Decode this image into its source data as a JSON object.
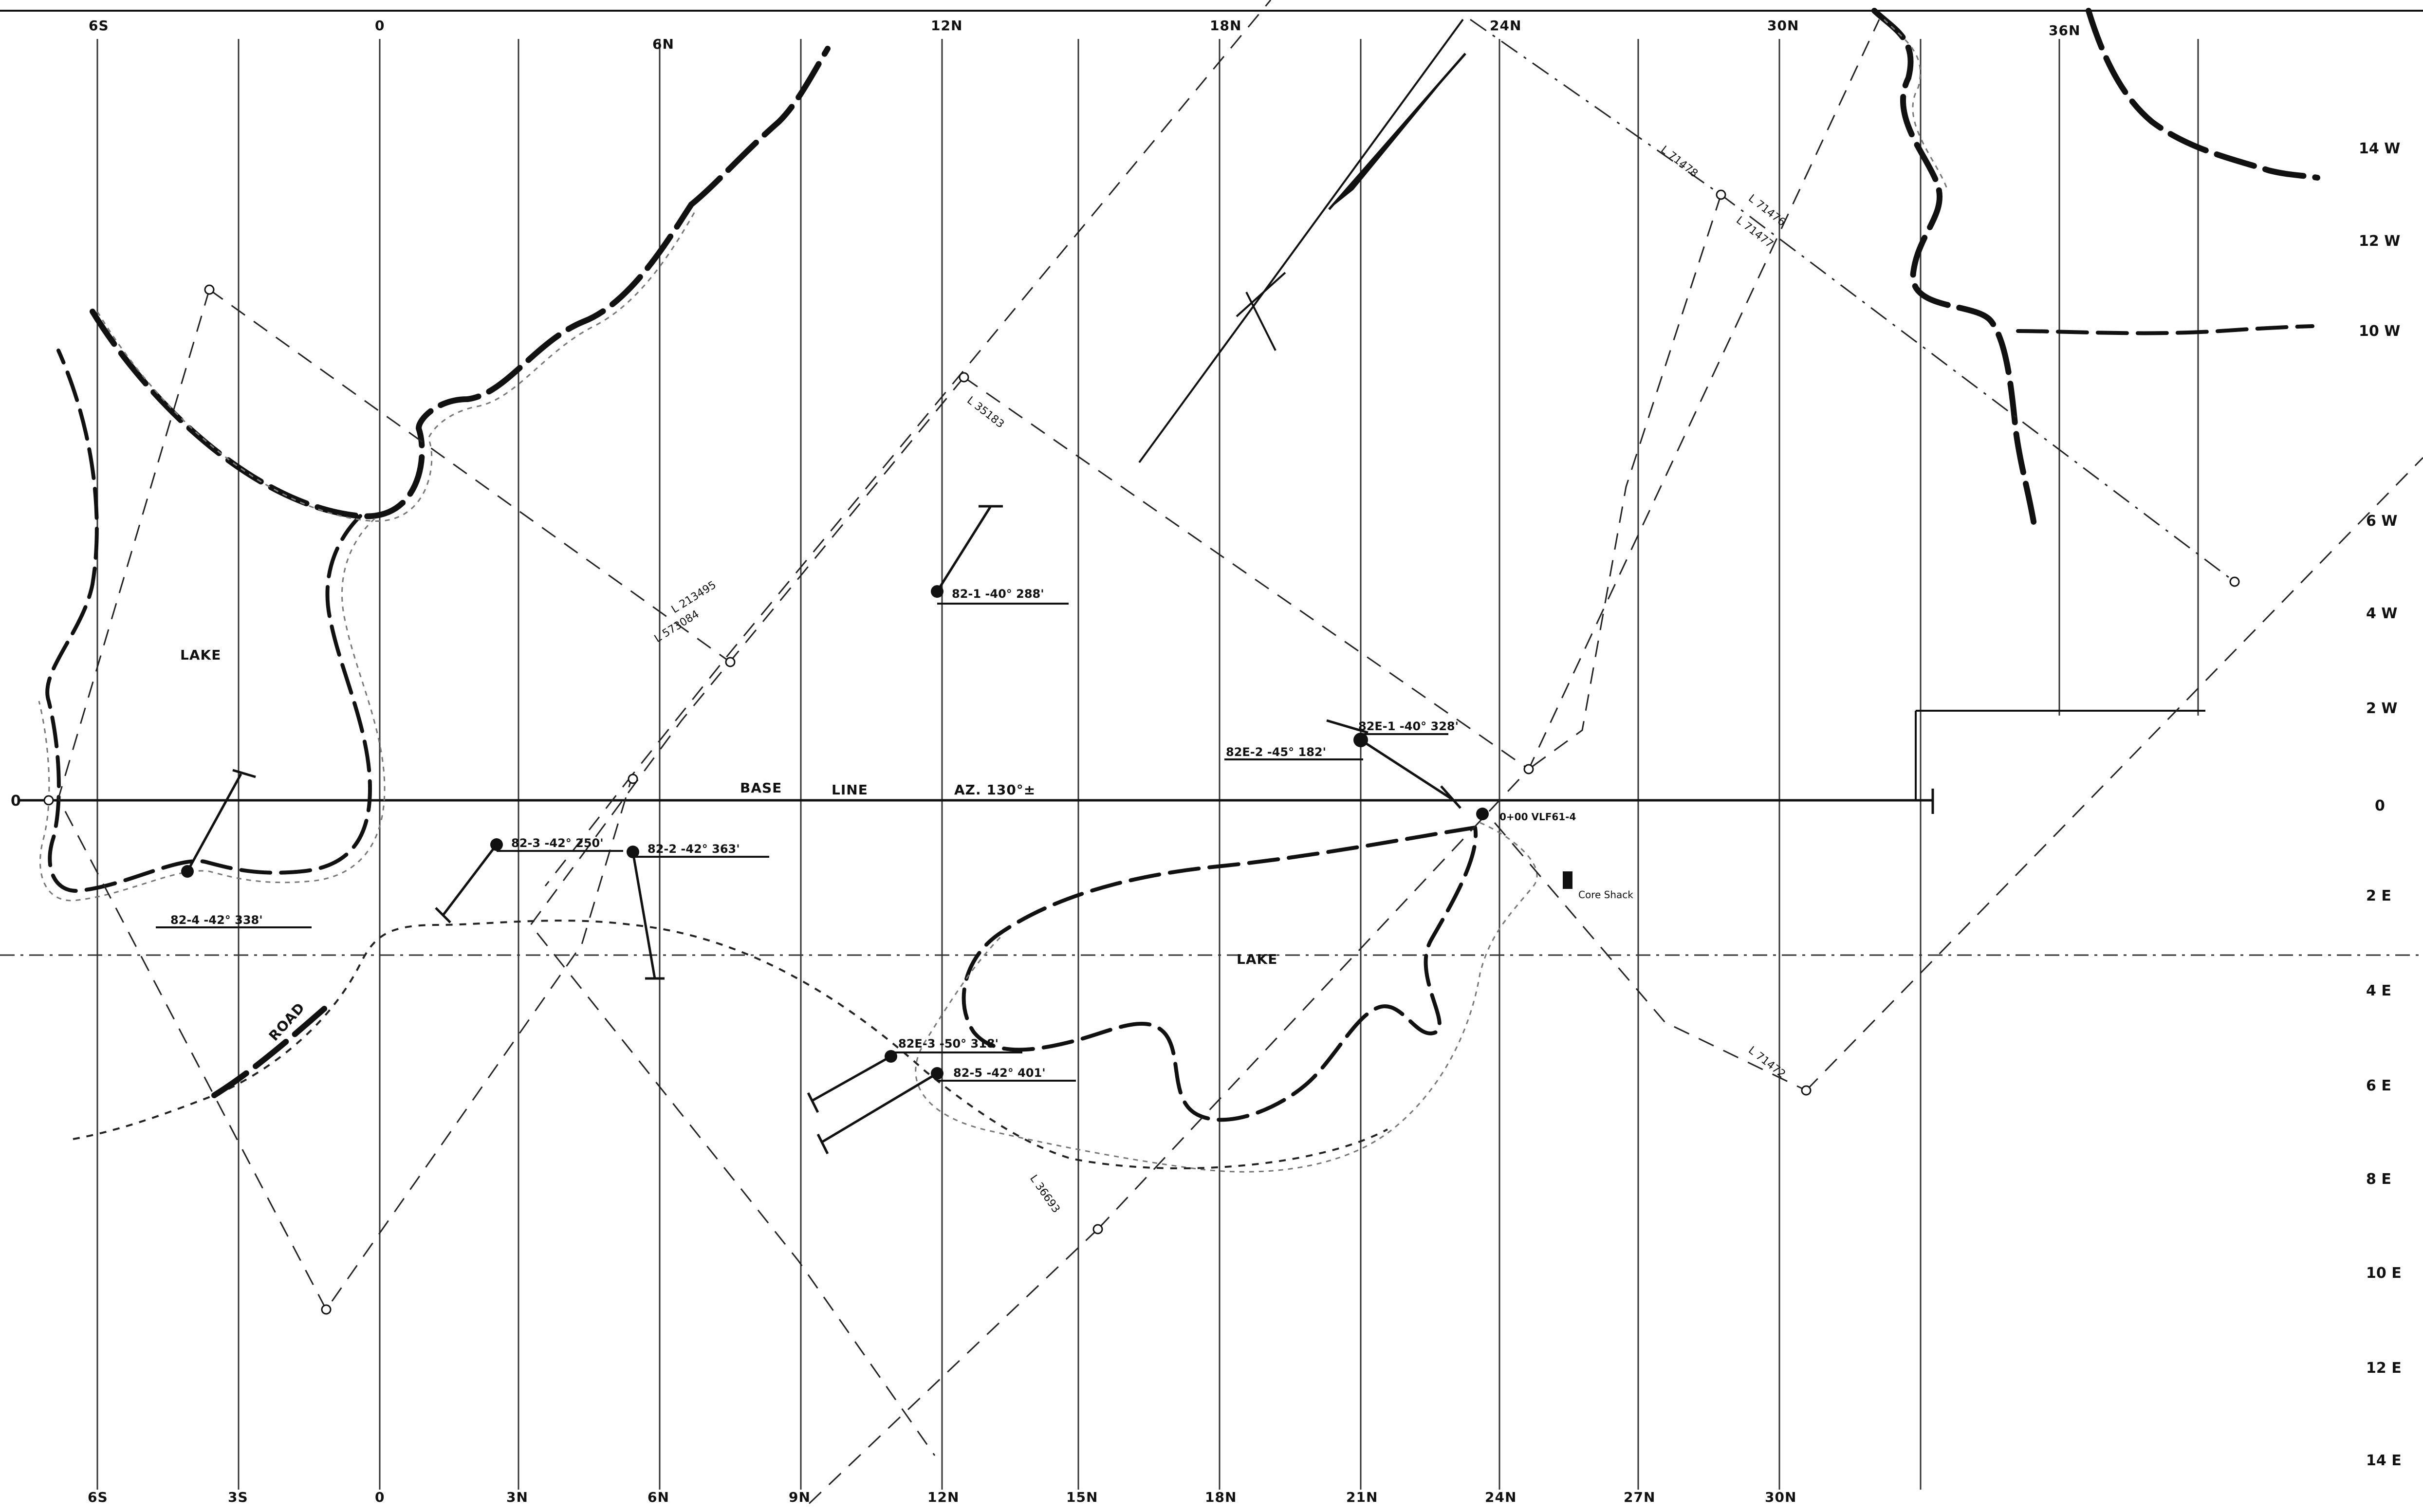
{
  "grid": {
    "top_labels": [
      "6S",
      "0",
      "6N",
      "12N",
      "18N",
      "24N",
      "30N",
      "36N"
    ],
    "bottom_labels": [
      "6S",
      "3S",
      "0",
      "3N",
      "6N",
      "9N",
      "12N",
      "15N",
      "18N",
      "21N",
      "24N",
      "27N",
      "30N"
    ],
    "right_labels": [
      "14 W",
      "12 W",
      "10 W",
      "6 W",
      "4 W",
      "2 W",
      "0",
      "2 E",
      "4 E",
      "6 E",
      "8 E",
      "10 E",
      "12 E",
      "14 E"
    ],
    "left_labels": [
      "0"
    ]
  },
  "baseline": {
    "base": "BASE",
    "line": "LINE",
    "azimuth": "AZ. 130°±"
  },
  "features": {
    "lake_west": "LAKE",
    "lake_east": "LAKE",
    "road": "ROAD",
    "core_shack": "Core Shack",
    "origin": "0+00 VLF61-4"
  },
  "drill_holes": [
    {
      "id": "82-1",
      "label": "82-1 -40° 288'"
    },
    {
      "id": "82E-1",
      "label": "82E-1 -40° 328'"
    },
    {
      "id": "82E-2",
      "label": "82E-2 -45° 182'"
    },
    {
      "id": "82-3",
      "label": "82-3 -42° 250'"
    },
    {
      "id": "82-2",
      "label": "82-2 -42° 363'"
    },
    {
      "id": "82-4",
      "label": "82-4 -42° 338'"
    },
    {
      "id": "82E-3",
      "label": "82E-3 -50° 318'"
    },
    {
      "id": "82-5",
      "label": "82-5 -42° 401'"
    }
  ],
  "survey_lines": {
    "l35183": "L 35183",
    "l213495": "L 213495",
    "l573084": "L 573084",
    "l36693": "L 36693",
    "l71478": "L 71478",
    "l71476": "L 71476",
    "l71477": "L 71477",
    "l71472": "L 71472"
  }
}
